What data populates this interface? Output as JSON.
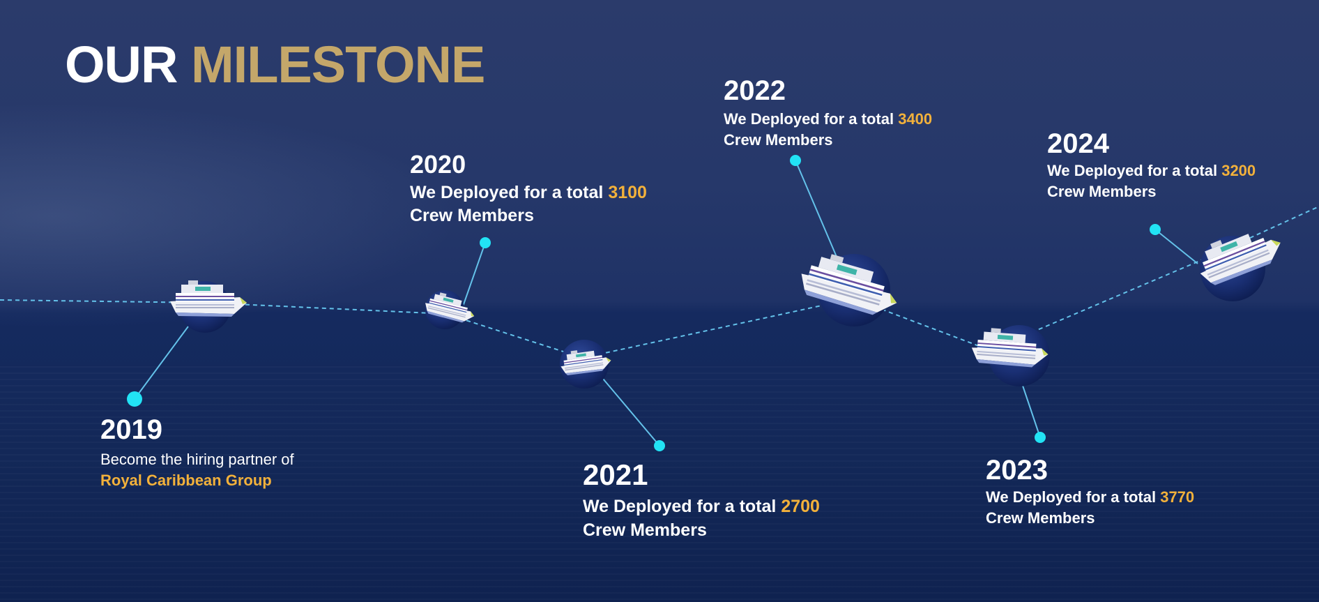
{
  "title": {
    "part1": "OUR",
    "part2": "MILESTONE"
  },
  "colors": {
    "gold": "#c4a76a",
    "highlight": "#f2b13b",
    "dot": "#22e3f5",
    "line": "#64c2ea"
  },
  "milestones": [
    {
      "year": "2019",
      "text": "Become the hiring partner of",
      "highlight": "Royal Caribbean Group",
      "suffix": ""
    },
    {
      "year": "2020",
      "text": "We Deployed for a total",
      "highlight": "3100",
      "suffix": "Crew Members"
    },
    {
      "year": "2021",
      "text": "We Deployed for a total",
      "highlight": "2700",
      "suffix": "Crew Members"
    },
    {
      "year": "2022",
      "text": "We Deployed for a total",
      "highlight": "3400",
      "suffix": "Crew Members"
    },
    {
      "year": "2023",
      "text": "We Deployed for a total",
      "highlight": "3770",
      "suffix": "Crew Members"
    },
    {
      "year": "2024",
      "text": "We Deployed for a total",
      "highlight": "3200",
      "suffix": "Crew Members"
    }
  ]
}
